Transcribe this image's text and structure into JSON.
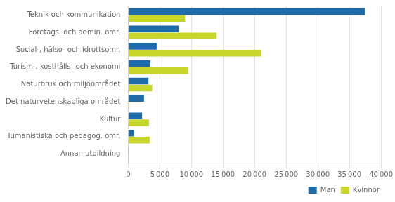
{
  "chart_data": {
    "type": "bar",
    "orientation": "horizontal",
    "categories": [
      "Teknik och kommunikation",
      "Företags. och admin. omr.",
      "Social-, hälso- och idrottsomr.",
      "Turism-, kosthålls- och ekonomi",
      "Naturbruk och miljöområdet",
      "Det naturvetenskapliga området",
      "Kultur",
      "Humanistiska och pedagog. omr.",
      "Annan utbildning"
    ],
    "series": [
      {
        "name": "Män",
        "color": "#1f6ca8",
        "values": [
          37500,
          8000,
          4500,
          3500,
          3200,
          2500,
          2200,
          900,
          80
        ]
      },
      {
        "name": "Kvinnor",
        "color": "#c8d62b",
        "values": [
          9000,
          14000,
          21000,
          9500,
          3800,
          200,
          3300,
          3400,
          50
        ]
      }
    ],
    "xlim": [
      0,
      40000
    ],
    "xticks": [
      0,
      {
        "value": 5000,
        "label": "5 000"
      },
      {
        "value": 10000,
        "label": "10 000"
      },
      {
        "value": 15000,
        "label": "15 000"
      },
      {
        "value": 20000,
        "label": "20 000"
      },
      {
        "value": 25000,
        "label": "25 000"
      },
      {
        "value": 30000,
        "label": "30 000"
      },
      {
        "value": 35000,
        "label": "35 000"
      },
      {
        "value": 40000,
        "label": "40 000"
      }
    ],
    "grid": true,
    "legend": "lower right"
  }
}
